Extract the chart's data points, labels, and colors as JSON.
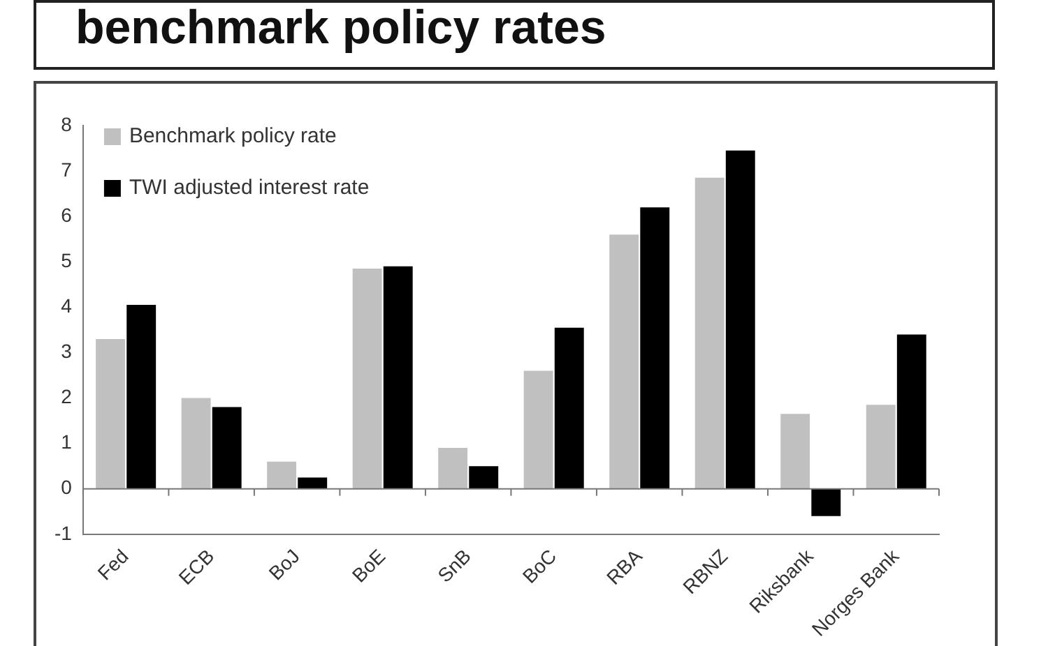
{
  "chart_data": {
    "type": "bar",
    "title": "benchmark policy rates",
    "categories": [
      "Fed",
      "ECB",
      "BoJ",
      "BoE",
      "SnB",
      "BoC",
      "RBA",
      "RBNZ",
      "Riksbank",
      "Norges Bank"
    ],
    "series": [
      {
        "name": "Benchmark policy rate",
        "color": "#c0c0c0",
        "values": [
          3.3,
          2.0,
          0.6,
          4.85,
          0.9,
          2.6,
          5.6,
          6.85,
          1.65,
          1.85
        ]
      },
      {
        "name": "TWI adjusted interest rate",
        "color": "#000000",
        "values": [
          4.05,
          1.8,
          0.25,
          4.9,
          0.5,
          3.55,
          6.2,
          7.45,
          -0.6,
          3.4
        ]
      }
    ],
    "ylim": [
      -1,
      8
    ],
    "yticks": [
      -1,
      0,
      1,
      2,
      3,
      4,
      5,
      6,
      7,
      8
    ],
    "ref_lines": [
      {
        "axis": "y",
        "value": 0,
        "color": "#777777"
      }
    ],
    "grid": false,
    "legend": "top left"
  }
}
